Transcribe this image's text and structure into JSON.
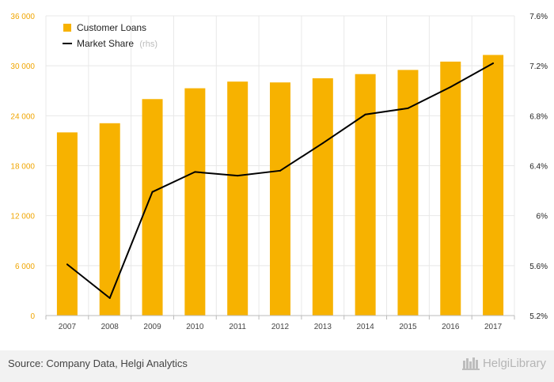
{
  "chart_data": {
    "type": "bar",
    "title": "",
    "categories": [
      "2007",
      "2008",
      "2009",
      "2010",
      "2011",
      "2012",
      "2013",
      "2014",
      "2015",
      "2016",
      "2017"
    ],
    "series": [
      {
        "name": "Customer Loans",
        "type": "bar",
        "axis": "left",
        "color": "#f7b200",
        "values": [
          22000,
          23100,
          26000,
          27300,
          28100,
          28000,
          28500,
          29000,
          29500,
          30500,
          31300
        ]
      },
      {
        "name": "Market Share",
        "name_suffix": "(rhs)",
        "type": "line",
        "axis": "right",
        "color": "#000000",
        "values": [
          5.61,
          5.34,
          6.19,
          6.35,
          6.32,
          6.36,
          6.58,
          6.81,
          6.86,
          7.03,
          7.22
        ]
      }
    ],
    "y_left": {
      "ylim": [
        0,
        36000
      ],
      "ticks": [
        0,
        6000,
        12000,
        18000,
        24000,
        30000,
        36000
      ],
      "tick_labels": [
        "0",
        "6 000",
        "12 000",
        "18 000",
        "24 000",
        "30 000",
        "36 000"
      ]
    },
    "y_right": {
      "ylim": [
        5.2,
        7.6
      ],
      "ticks": [
        5.2,
        5.6,
        6.0,
        6.4,
        6.8,
        7.2,
        7.6
      ],
      "tick_labels": [
        "5.2%",
        "5.6%",
        "6%",
        "6.4%",
        "6.8%",
        "7.2%",
        "7.6%"
      ]
    },
    "grid": true,
    "legend_position": "top-left"
  },
  "footer": {
    "source": "Source: Company Data, Helgi Analytics",
    "brand": "HelgiLibrary"
  },
  "colors": {
    "bar": "#f7b200",
    "line": "#000000",
    "left_ticks": "#f0a500",
    "grid": "#e8e8e8",
    "footer_bg": "#f2f2f2"
  }
}
